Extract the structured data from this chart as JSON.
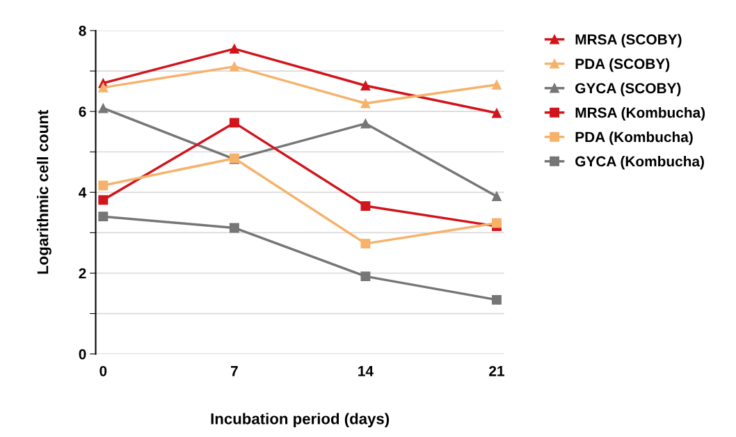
{
  "chart_data": {
    "type": "line",
    "xlabel": "Incubation period (days)",
    "ylabel": "Logarithmic cell count",
    "x": [
      0,
      7,
      14,
      21
    ],
    "xlim": [
      -0.4,
      21.4
    ],
    "xticks": [
      0,
      7,
      14,
      21
    ],
    "ylim": [
      0,
      8
    ],
    "yticks": [
      0,
      {
        "value": 1,
        "label": null
      },
      2,
      {
        "value": 3,
        "label": null
      },
      4,
      {
        "value": 5,
        "label": null
      },
      6,
      {
        "value": 7,
        "label": null
      },
      8
    ],
    "grid": "y",
    "legend": "top right",
    "line_style": "solid",
    "series": [
      {
        "name": "MRSA (SCOBY)",
        "color": "#d2141c",
        "marker": "triangle",
        "values": [
          6.7,
          7.55,
          6.64,
          5.96
        ]
      },
      {
        "name": "PDA (SCOBY)",
        "color": "#f6b26b",
        "marker": "triangle",
        "values": [
          6.59,
          7.11,
          6.2,
          6.66
        ]
      },
      {
        "name": "GYCA (SCOBY)",
        "color": "#767676",
        "marker": "triangle",
        "values": [
          6.08,
          4.82,
          5.7,
          3.9
        ]
      },
      {
        "name": "MRSA (Kombucha)",
        "color": "#d2141c",
        "marker": "square",
        "values": [
          3.81,
          5.72,
          3.66,
          3.16
        ]
      },
      {
        "name": "PDA (Kombucha)",
        "color": "#f6b26b",
        "marker": "square",
        "values": [
          4.17,
          4.84,
          2.73,
          3.24
        ]
      },
      {
        "name": "GYCA (Kombucha)",
        "color": "#767676",
        "marker": "square",
        "values": [
          3.4,
          3.12,
          1.92,
          1.34
        ]
      }
    ]
  }
}
